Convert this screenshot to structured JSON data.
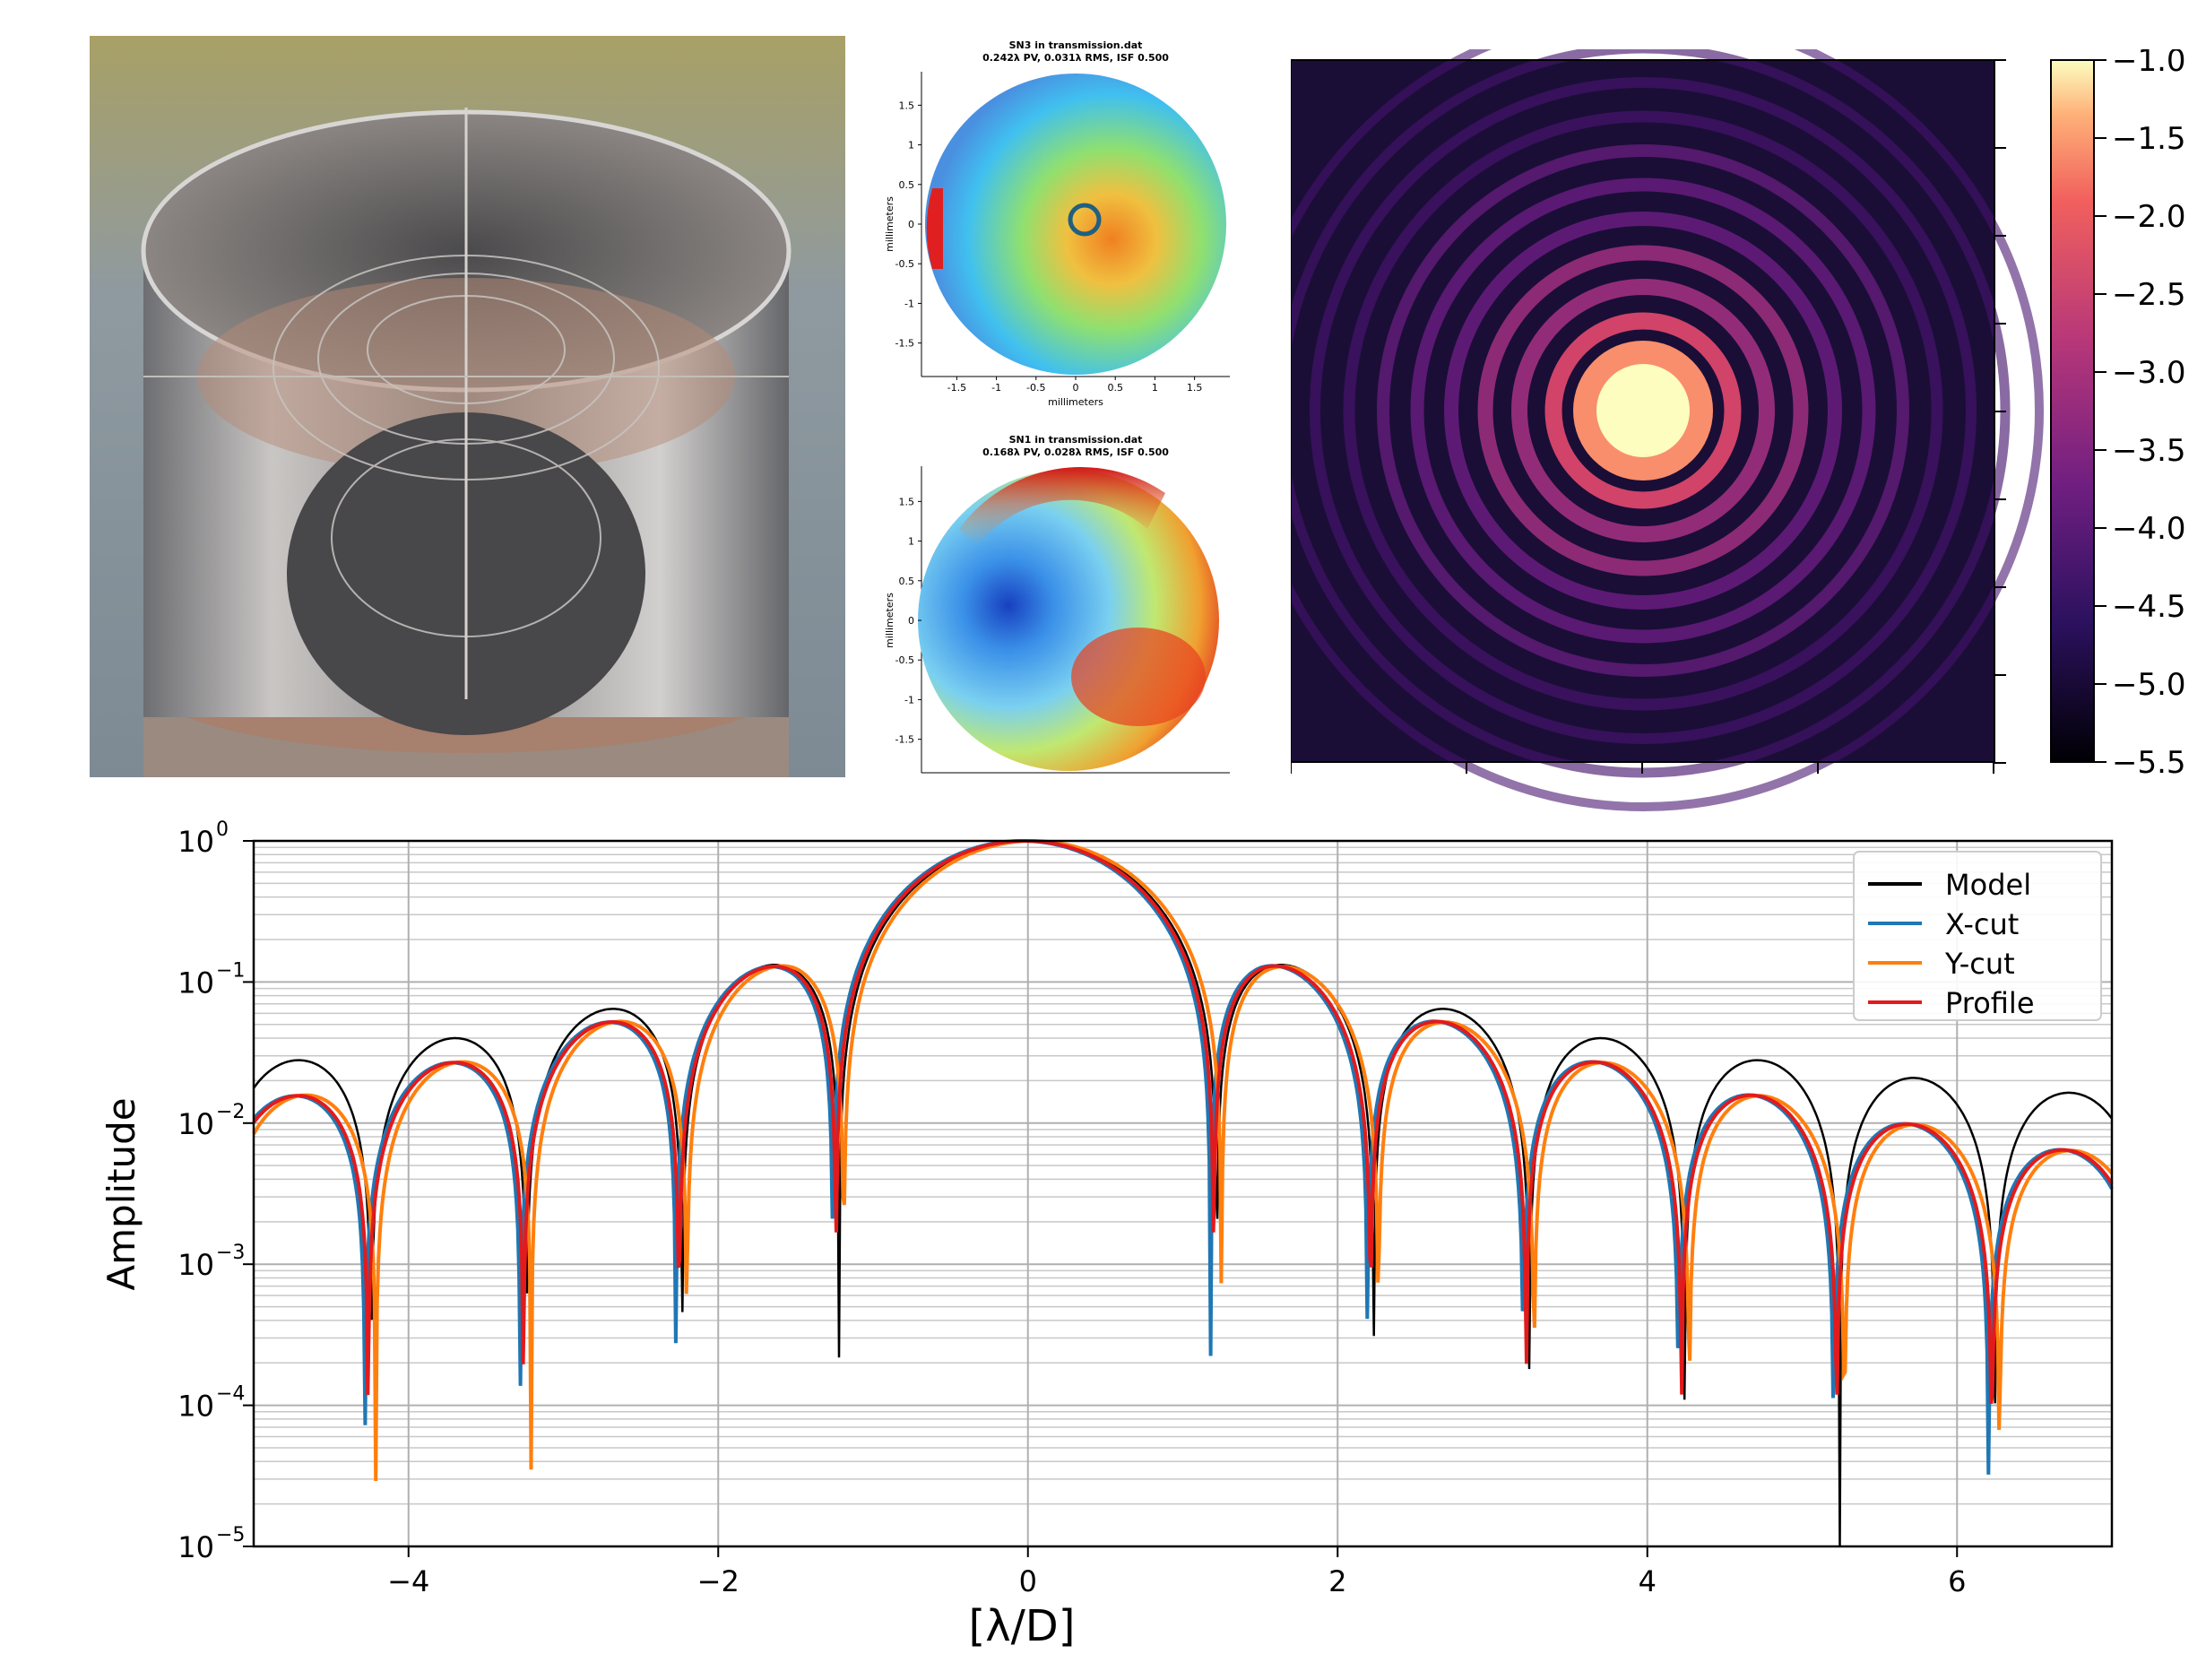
{
  "photo": {
    "caption": ""
  },
  "chart_data": [
    {
      "type": "heatmap",
      "title": "SN3 in transmission.dat",
      "subtitle": "0.242λ PV, 0.031λ RMS, ISF 0.500",
      "xlabel": "millimeters",
      "ylabel": "millimeters",
      "xticks": [
        "-1.5",
        "-1",
        "-0.5",
        "0",
        "0.5",
        "1",
        "1.5"
      ],
      "yticks": [
        "1.5",
        "1",
        "0.5",
        "0",
        "-0.5",
        "-1",
        "-1.5"
      ],
      "xlim": [
        -1.9,
        1.9
      ],
      "ylim": [
        -1.9,
        1.9
      ]
    },
    {
      "type": "heatmap",
      "title": "SN1 in transmission.dat",
      "subtitle": "0.168λ PV, 0.028λ RMS, ISF 0.500",
      "xlabel": "",
      "ylabel": "millimeters",
      "yticks": [
        "1.5",
        "1",
        "0.5",
        "0",
        "-0.5",
        "-1",
        "-1.5"
      ],
      "ylim": [
        -1.9,
        1.9
      ]
    },
    {
      "type": "heatmap",
      "title": "",
      "colorbar_ticks": [
        "−1.0",
        "−1.5",
        "−2.0",
        "−2.5",
        "−3.0",
        "−3.5",
        "−4.0",
        "−4.5",
        "−5.0",
        "−5.5"
      ],
      "colorbar_range": [
        -5.5,
        -1.0
      ],
      "rings": 10
    },
    {
      "type": "line",
      "title": "",
      "xlabel": "[λ/D]",
      "ylabel": "Amplitude",
      "xlim": [
        -5,
        7
      ],
      "ylim_log10": [
        -5,
        0
      ],
      "xticks": [
        -4,
        -2,
        0,
        2,
        4,
        6
      ],
      "xtick_labels": [
        "−4",
        "−2",
        "0",
        "2",
        "4",
        "6"
      ],
      "yticks": [
        0,
        -1,
        -2,
        -3,
        -4,
        -5
      ],
      "ytick_labels": [
        "10",
        "10",
        "10",
        "10",
        "10",
        "10"
      ],
      "ytick_exponents": [
        "0",
        "−1",
        "−2",
        "−3",
        "−4",
        "−5"
      ],
      "grid": true,
      "legend_position": "top-right",
      "series": [
        {
          "name": "Model",
          "color": "#000000",
          "offset": 0,
          "floor": 0
        },
        {
          "name": "X-cut",
          "color": "#1f77b4",
          "offset": 0.04,
          "floor": 1e-05
        },
        {
          "name": "Y-cut",
          "color": "#ff7f0e",
          "offset": -0.03,
          "floor": 1e-05
        },
        {
          "name": "Profile",
          "color": "#e31a1c",
          "offset": 0.02,
          "floor": 1e-05
        }
      ]
    }
  ]
}
